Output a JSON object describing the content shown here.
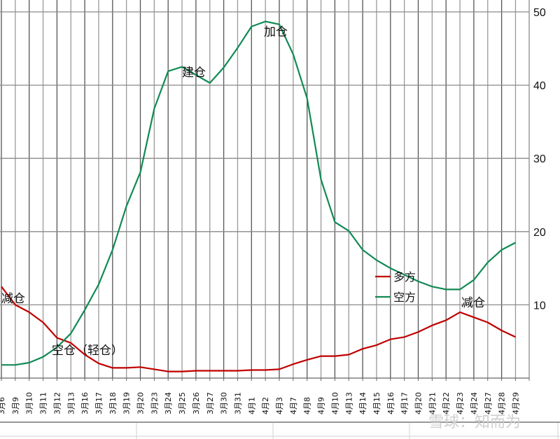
{
  "chart_data": {
    "type": "line",
    "title": "",
    "xlabel": "",
    "ylabel": "",
    "ylim": [
      0,
      50
    ],
    "y_ticks": [
      10,
      20,
      30,
      40,
      50
    ],
    "y_axis_position": "right",
    "grid": true,
    "legend_position": "inside-lower-right",
    "categories": [
      "3月6",
      "3月9",
      "3月10",
      "3月11",
      "3月12",
      "3月13",
      "3月16",
      "3月17",
      "3月18",
      "3月19",
      "3月20",
      "3月23",
      "3月24",
      "3月25",
      "3月26",
      "3月27",
      "3月30",
      "3月31",
      "4月1",
      "4月2",
      "4月3",
      "4月7",
      "4月8",
      "4月9",
      "4月10",
      "4月13",
      "4月14",
      "4月15",
      "4月16",
      "4月17",
      "4月20",
      "4月21",
      "4月22",
      "4月23",
      "4月24",
      "4月27",
      "4月28",
      "4月29"
    ],
    "series": [
      {
        "name": "多方",
        "color": "#c00000",
        "values": [
          12.5,
          10.0,
          9.0,
          7.6,
          5.5,
          4.8,
          3.2,
          2.0,
          1.4,
          1.4,
          1.5,
          1.2,
          0.9,
          0.9,
          1.0,
          1.0,
          1.0,
          1.0,
          1.1,
          1.1,
          1.2,
          1.9,
          2.5,
          3.0,
          3.0,
          3.2,
          4.0,
          4.5,
          5.3,
          5.6,
          6.3,
          7.2,
          7.9,
          9.0,
          8.3,
          7.6,
          6.5,
          5.6
        ]
      },
      {
        "name": "空方",
        "color": "#118a55",
        "values": [
          1.8,
          1.8,
          2.1,
          2.9,
          4.2,
          6.1,
          9.3,
          12.8,
          17.5,
          23.5,
          28.1,
          36.8,
          41.9,
          42.5,
          41.4,
          40.3,
          42.4,
          45.1,
          48.0,
          48.7,
          48.3,
          44.2,
          38.2,
          27.1,
          21.3,
          20.1,
          17.5,
          16.1,
          15.0,
          14.1,
          13.2,
          12.5,
          12.1,
          12.1,
          13.4,
          15.8,
          17.5,
          18.5
        ]
      }
    ],
    "annotations": [
      {
        "text": "减仓",
        "category": "3月6",
        "series": "多方"
      },
      {
        "text": "空仓（轻仓）",
        "category": "3月13",
        "series": "多方"
      },
      {
        "text": "建仓",
        "category": "3月25",
        "series": "空方"
      },
      {
        "text": "加仓",
        "category": "4月2",
        "series": "空方"
      },
      {
        "text": "减仓",
        "category": "4月23",
        "series": "多方"
      }
    ]
  },
  "legend": {
    "items": [
      {
        "label": "多方",
        "color": "#c00000"
      },
      {
        "label": "空方",
        "color": "#118a55"
      }
    ]
  },
  "watermark": "雪球：知而为"
}
